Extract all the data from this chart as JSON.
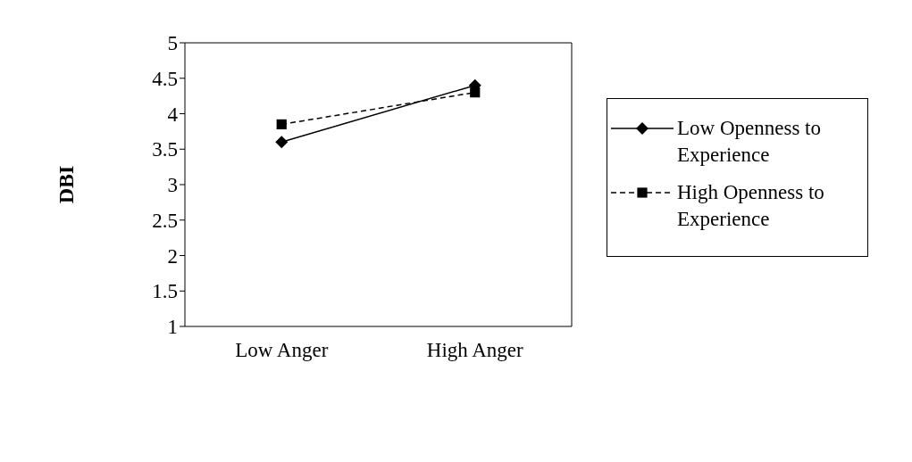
{
  "chart_data": {
    "type": "line",
    "ylabel": "DBI",
    "categories": [
      "Low Anger",
      "High Anger"
    ],
    "series": [
      {
        "name": "Low Openness to Experience",
        "color": "#000000",
        "values": [
          3.6,
          4.4
        ],
        "marker": "diamond",
        "line_style": "solid"
      },
      {
        "name": "High Openness to Experience",
        "color": "#000000",
        "values": [
          3.85,
          4.3
        ],
        "marker": "square",
        "line_style": "dashed"
      }
    ],
    "ylim": [
      1,
      5
    ],
    "yticks": [
      1,
      1.5,
      2,
      2.5,
      3,
      3.5,
      4,
      4.5,
      5
    ],
    "grid": false,
    "legend": "right"
  }
}
